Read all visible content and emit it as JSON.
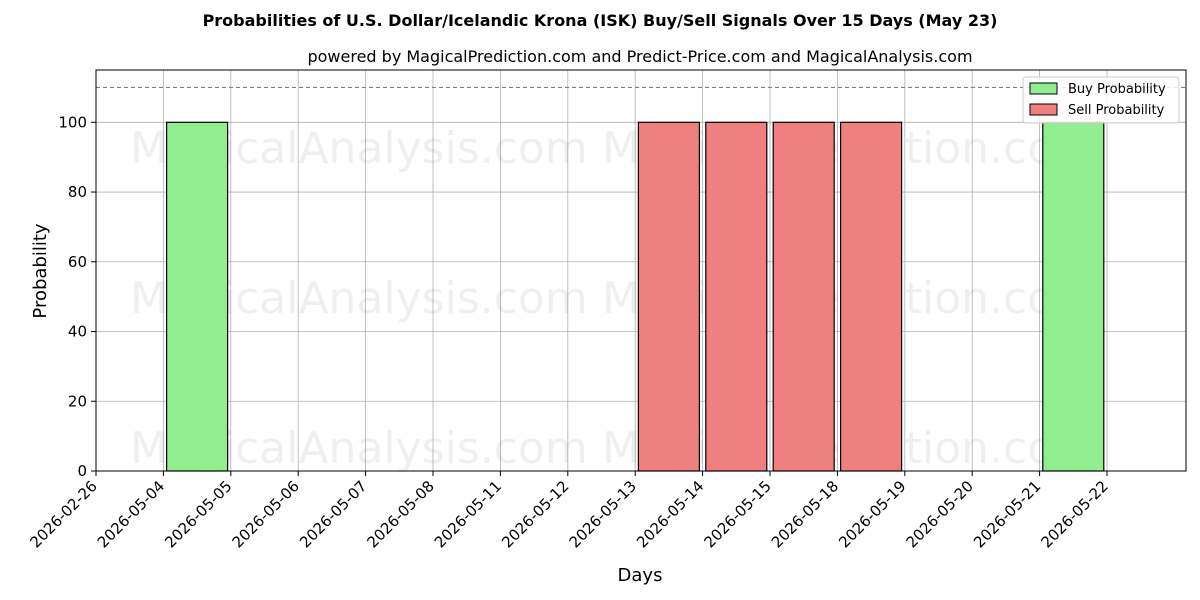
{
  "chart_data": {
    "type": "bar",
    "title": "Probabilities of U.S. Dollar/Icelandic Krona (ISK) Buy/Sell Signals Over 15 Days (May 23)",
    "subtitle": "powered by MagicalPrediction.com and Predict-Price.com and MagicalAnalysis.com",
    "xlabel": "Days",
    "ylabel": "Probability",
    "categories": [
      "2026-02-26",
      "2026-05-04",
      "2026-05-05",
      "2026-05-06",
      "2026-05-07",
      "2026-05-08",
      "2026-05-11",
      "2026-05-12",
      "2026-05-13",
      "2026-05-14",
      "2026-05-15",
      "2026-05-18",
      "2026-05-19",
      "2026-05-20",
      "2026-05-21",
      "2026-05-22"
    ],
    "series": [
      {
        "name": "Buy Probability",
        "color": "#90ee90",
        "values": [
          0,
          0,
          100,
          0,
          0,
          0,
          0,
          0,
          0,
          0,
          0,
          0,
          0,
          0,
          0,
          100
        ]
      },
      {
        "name": "Sell Probability",
        "color": "#f08080",
        "values": [
          0,
          0,
          0,
          0,
          0,
          0,
          0,
          0,
          0,
          100,
          100,
          100,
          100,
          0,
          0,
          0
        ]
      }
    ],
    "ylim": [
      0,
      115
    ],
    "yticks": [
      0,
      20,
      40,
      60,
      80,
      100
    ],
    "reference_line": 110,
    "grid": true,
    "legend_position": "top-right",
    "watermarks": [
      "MagicalAnalysis.com",
      "MagicalPrediction.com"
    ]
  }
}
